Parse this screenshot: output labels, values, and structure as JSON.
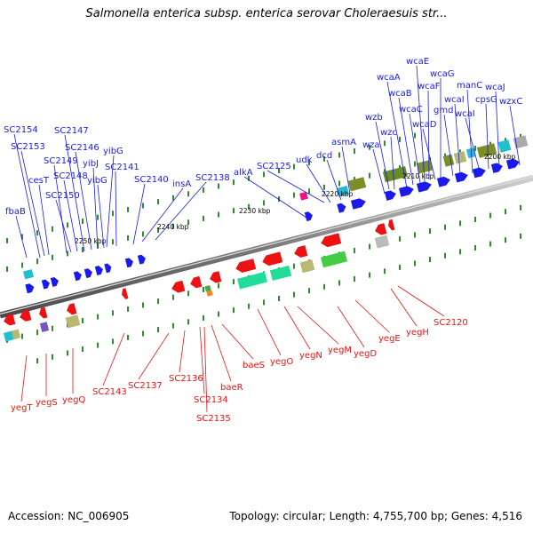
{
  "title": "Salmonella enterica subsp. enterica serovar Choleraesuis str...",
  "footer": {
    "accession": "Accession: NC_006905",
    "topology": "Topology: circular; Length: 4,755,700 bp; Genes: 4,516"
  },
  "colors": {
    "forward": "#1a1aee",
    "reverse": "#ee1111",
    "backbone": "#8c8c8c",
    "tick": "#2e8b2e"
  },
  "scale_labels": [
    "2250 kbp",
    "2240 kbp",
    "2230 kbp",
    "2220 kbp",
    "2210 kbp",
    "2200 kbp"
  ],
  "forward_genes": [
    "fbaB",
    "SC2154",
    "SC2153",
    "cesT",
    "SC2149",
    "SC2150",
    "SC2148",
    "SC2147",
    "SC2146",
    "yibJ",
    "yibG",
    "yibG",
    "SC2141",
    "SC2140",
    "insA",
    "SC2138",
    "alkA",
    "SC2125",
    "udk",
    "dcd",
    "asmA",
    "wza",
    "wzb",
    "wzc",
    "wcaA",
    "wcaB",
    "wcaC",
    "wcaE",
    "wcaF",
    "wcaD",
    "wcaG",
    "gmd",
    "wcaI",
    "manC",
    "wcaI",
    "cpsG",
    "wcaJ",
    "wzxC"
  ],
  "reverse_genes": [
    "yegT",
    "yegS",
    "yegQ",
    "SC2143",
    "SC2137",
    "SC2136",
    "SC2134",
    "SC2135",
    "baeR",
    "baeS",
    "yegO",
    "yegN",
    "yegM",
    "yegD",
    "yegE",
    "yegH",
    "SC2120"
  ]
}
